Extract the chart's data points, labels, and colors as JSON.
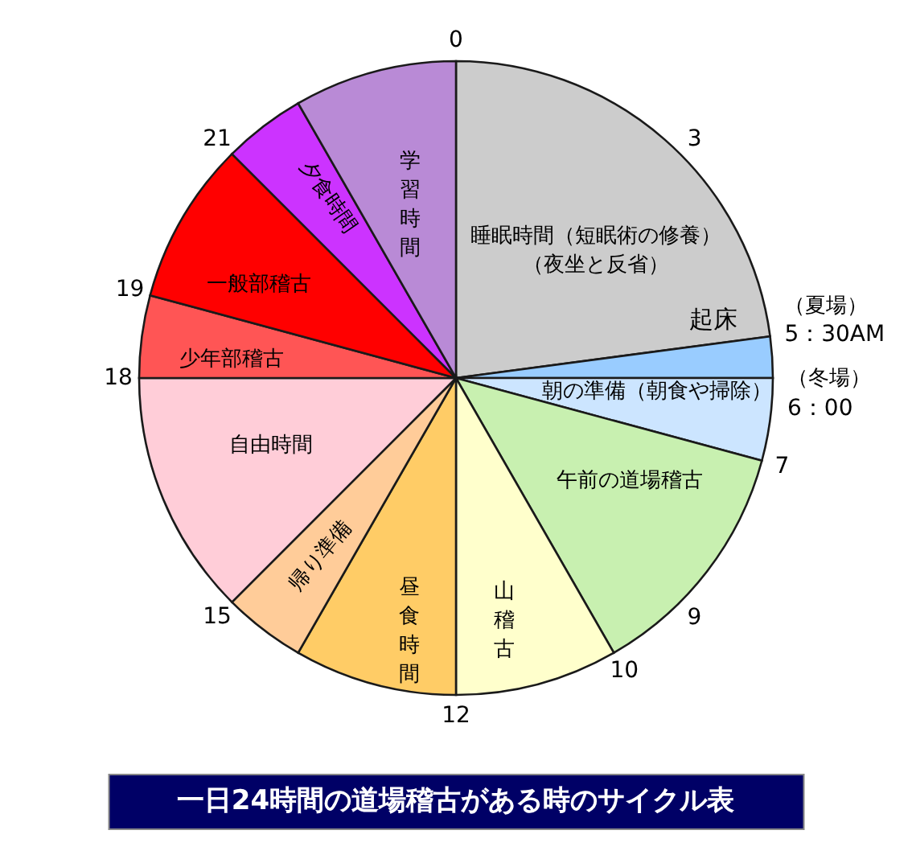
{
  "chart_data": {
    "type": "pie",
    "title": "一日24時間の道場稽古がある時のサイクル表",
    "categories": [
      "睡眠時間（短眠術の修養）（夜坐と反省）",
      null,
      "朝の準備（朝食や掃除）",
      "午前の道場稽古",
      "山稽古",
      "昼食時間",
      "帰り準備",
      "自由時間",
      "少年部稽古",
      "一般部稽古",
      "夕食時間",
      "学習時間"
    ],
    "values": [
      22.9,
      2.1,
      4.2,
      12.5,
      8.3,
      8.3,
      4.2,
      12.5,
      4.2,
      8.3,
      4.2,
      8.3
    ],
    "colors": [
      "#cccccc",
      "#99ccff",
      "#cce5ff",
      "#c8f0b0",
      "#ffffcc",
      "#ffcc66",
      "#ffcc99",
      "#ffcdd8",
      "#ff5555",
      "#ff0000",
      "#cc33ff",
      "#b98ad6"
    ],
    "annotations": [
      "起床",
      "0",
      "3",
      "（夏場）",
      "5：30AM",
      "（冬場）",
      "6：00",
      "7",
      "9",
      "10",
      "12",
      "15",
      "18",
      "19",
      "21"
    ]
  }
}
